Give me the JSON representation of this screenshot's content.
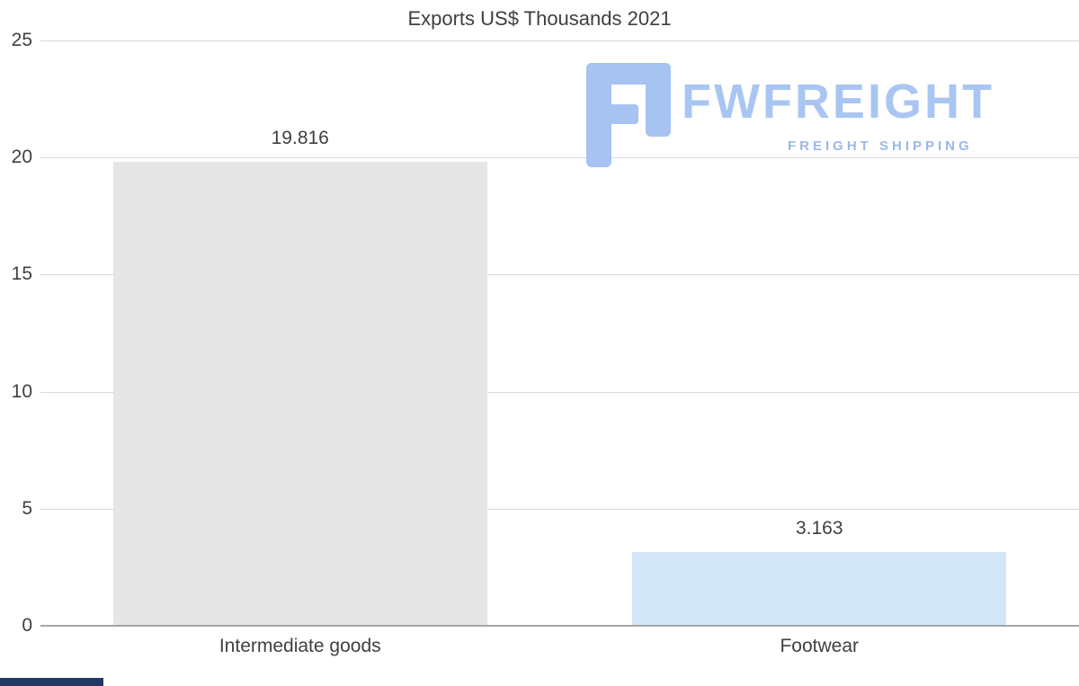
{
  "title": "Exports US$ Thousands 2021",
  "logo": {
    "name": "FWFREIGHT",
    "tagline": "FREIGHT SHIPPING",
    "name_color": "#a9c6f2",
    "tagline_color": "#9cb8e8",
    "icon_color": "#a6c3f1",
    "icon": "fwfreight-f-icon"
  },
  "footer": {
    "brand_strip_color": "#203864"
  },
  "chart_data": {
    "type": "bar",
    "title": "Exports US$ Thousands 2021",
    "categories": [
      "Intermediate goods",
      "Footwear"
    ],
    "values": [
      19.816,
      3.163
    ],
    "value_labels": [
      "19.816",
      "3.163"
    ],
    "bar_colors": [
      "#e6e6e6",
      "#d4e7f8"
    ],
    "xlabel": "",
    "ylabel": "",
    "ylim": [
      0,
      25
    ],
    "yticks": [
      0,
      5,
      10,
      15,
      20,
      25
    ],
    "grid": true,
    "legend": "none"
  }
}
